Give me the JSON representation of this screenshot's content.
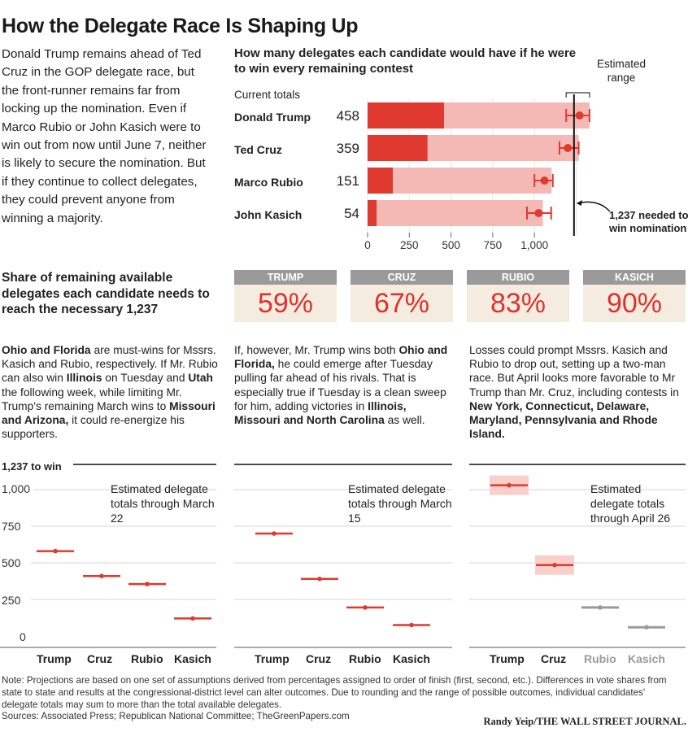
{
  "title": "How the Delegate Race Is Shaping Up",
  "intro": "Donald Trump remains ahead of Ted Cruz in the GOP delegate race, but the front-runner remains far from locking up the nomination. Even if Marco Rubio or John Kasich were to win out from now until June 7, neither is likely to secure the nomination. But if they continue to collect delegates, they could prevent anyone from winning a majority.",
  "colors": {
    "accent": "#e0312f",
    "bar_light": "#f4b9b4",
    "bar_dark": "#e0392f",
    "gray_bar": "#9a9a9a",
    "share_bg": "#f5ece0"
  },
  "chart_data": [
    {
      "type": "bar",
      "title": "How many delegates each candidate would have if he were to win every remaining contest",
      "range_label": "Estimated range",
      "current_label": "Current totals",
      "needed_label": "1,237 needed to win nomination",
      "categories": [
        "Donald Trump",
        "Ted Cruz",
        "Marco Rubio",
        "John Kasich"
      ],
      "current_totals": [
        458,
        359,
        151,
        54
      ],
      "current_totals_text": [
        "458",
        "359",
        "151",
        "54"
      ],
      "max_possible": [
        1330,
        1265,
        1102,
        1050
      ],
      "estimated_ranges": [
        [
          1190,
          1330
        ],
        [
          1150,
          1265
        ],
        [
          1000,
          1110
        ],
        [
          955,
          1100
        ]
      ],
      "estimated_points": [
        1270,
        1200,
        1060,
        1025
      ],
      "xlim": [
        0,
        1400
      ],
      "xticks": [
        "0",
        "250",
        "500",
        "750",
        "1,000"
      ],
      "threshold": 1237
    },
    {
      "type": "scatter",
      "title": "Estimated delegate totals through March 22",
      "categories": [
        "Trump",
        "Cruz",
        "Rubio",
        "Kasich"
      ],
      "values": [
        580,
        410,
        355,
        120
      ],
      "ylim": [
        0,
        1000
      ],
      "yticks": [
        "1,000",
        "750",
        "500",
        "250",
        "0"
      ],
      "threshold_label": "1,237 to win"
    },
    {
      "type": "scatter",
      "title": "Estimated delegate totals through March 15",
      "categories": [
        "Trump",
        "Cruz",
        "Rubio",
        "Kasich"
      ],
      "values": [
        700,
        390,
        195,
        75
      ],
      "ylim": [
        0,
        1000
      ]
    },
    {
      "type": "scatter",
      "title": "Estimated delegate totals through April 26",
      "categories": [
        "Trump",
        "Cruz",
        "Rubio",
        "Kasich"
      ],
      "values": [
        1030,
        485,
        195,
        60
      ],
      "ylim": [
        0,
        1000
      ],
      "emphasis": [
        "accent",
        "accent",
        "muted",
        "muted"
      ]
    }
  ],
  "share": {
    "heading": "Share of remaining available delegates each candidate needs to reach the necessary 1,237",
    "items": [
      {
        "name": "TRUMP",
        "value": "59%"
      },
      {
        "name": "CRUZ",
        "value": "67%"
      },
      {
        "name": "RUBIO",
        "value": "83%"
      },
      {
        "name": "KASICH",
        "value": "90%"
      }
    ]
  },
  "paragraphs": [
    {
      "p1": "Ohio and Florida",
      "p2": " are must-wins for Mssrs. Kasich and Rubio, respectively. If Mr. Rubio can also win ",
      "p3": "Illinois",
      "p4": " on Tuesday and ",
      "p5": "Utah",
      "p6": " the following week, while limiting Mr. Trump's remaining March wins to ",
      "p7": "Missouri and Arizona,",
      "p8": " it could re-energize his supporters."
    },
    {
      "p1": "If, however, Mr. Trump wins both ",
      "p2": "Ohio and Florida,",
      "p3": " he could emerge after Tuesday pulling far ahead of his rivals. That is especially true if Tuesday is a clean sweep for him, adding victories in ",
      "p4": "Illinois, Missouri and North Carolina",
      "p5": " as well."
    },
    {
      "p1": "Losses could prompt Mssrs. Kasich and Rubio to drop out, setting up a two-man race. But April looks more favorable to Mr Trump than Mr. Cruz, including contests in ",
      "p2": "New York, Connecticut, Delaware, Maryland, Pennsylvania and Rhode Island."
    }
  ],
  "note": "Note: Projections are based on one set of assumptions derived from percentages assigned to order of finish (first, second, etc.). Differences in vote shares from state to state and results at the congressional-district level can alter outcomes. Due to rounding and the range of possible outcomes, individual candidates' delegate totals may sum to more than the total available delegates.",
  "sources": "Sources: Associated Press; Republican National Committee; TheGreenPapers.com",
  "credit": "Randy Yeip/THE WALL STREET JOURNAL."
}
